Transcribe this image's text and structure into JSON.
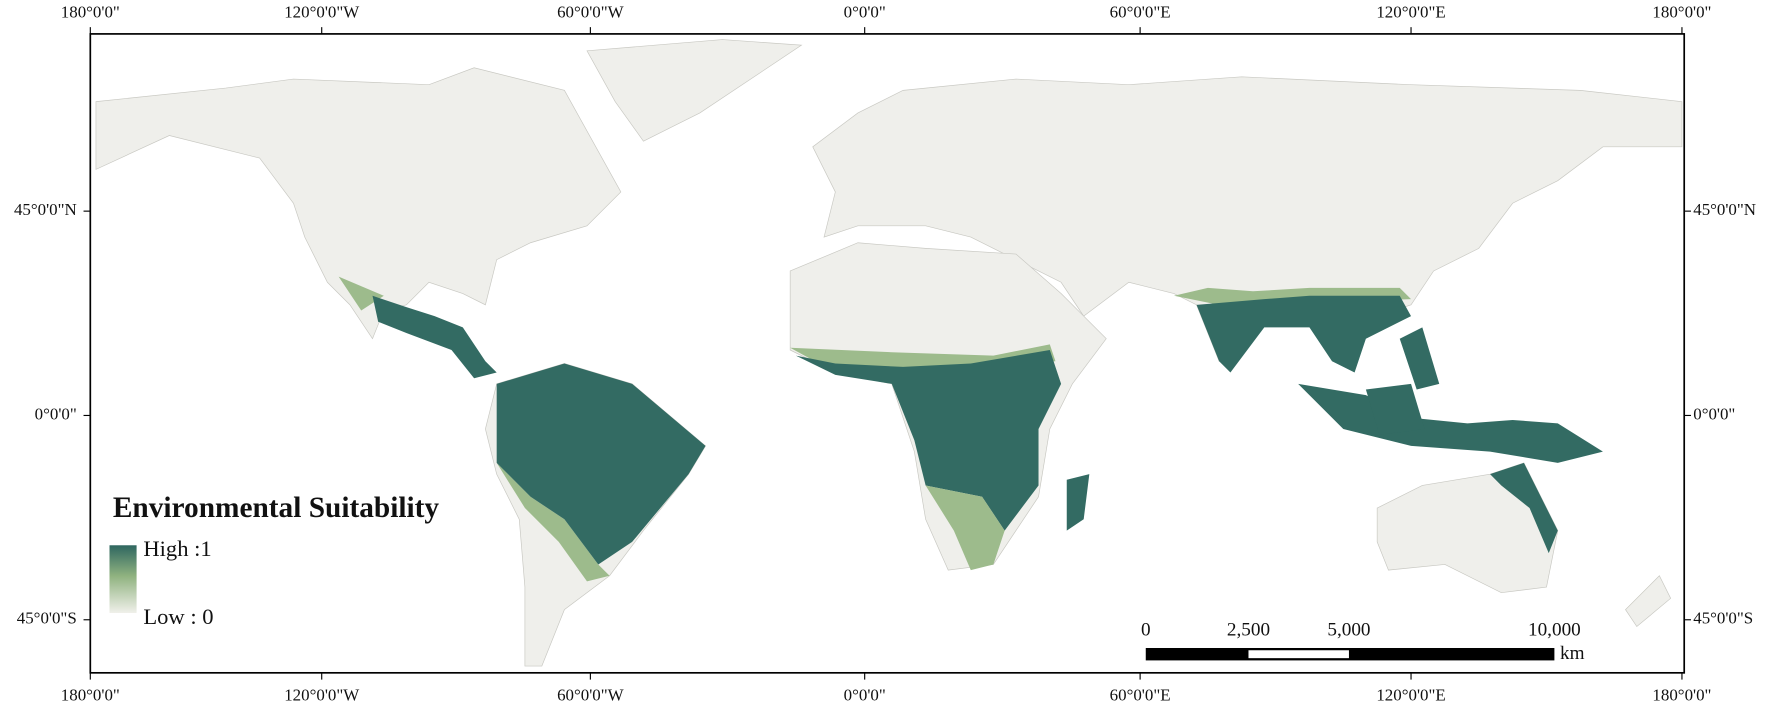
{
  "map": {
    "top_labels": [
      "180°0'0\"",
      "120°0'0\"W",
      "60°0'0\"W",
      "0°0'0\"",
      "60°0'0\"E",
      "120°0'0\"E",
      "180°0'0\""
    ],
    "bottom_labels": [
      "180°0'0\"",
      "120°0'0\"W",
      "60°0'0\"W",
      "0°0'0\"",
      "60°0'0\"E",
      "120°0'0\"E",
      "180°0'0\""
    ],
    "left_labels": [
      "45°0'0\"N",
      "0°0'0\"",
      "45°0'0\"S"
    ],
    "right_labels": [
      "45°0'0\"N",
      "0°0'0\"",
      "45°0'0\"S"
    ],
    "legend": {
      "title": "Environmental Suitability",
      "high": "High :1",
      "low": "Low : 0"
    },
    "scale_bar": {
      "ticks": [
        "0",
        "2,500",
        "5,000",
        "10,000"
      ],
      "unit": "km"
    }
  }
}
